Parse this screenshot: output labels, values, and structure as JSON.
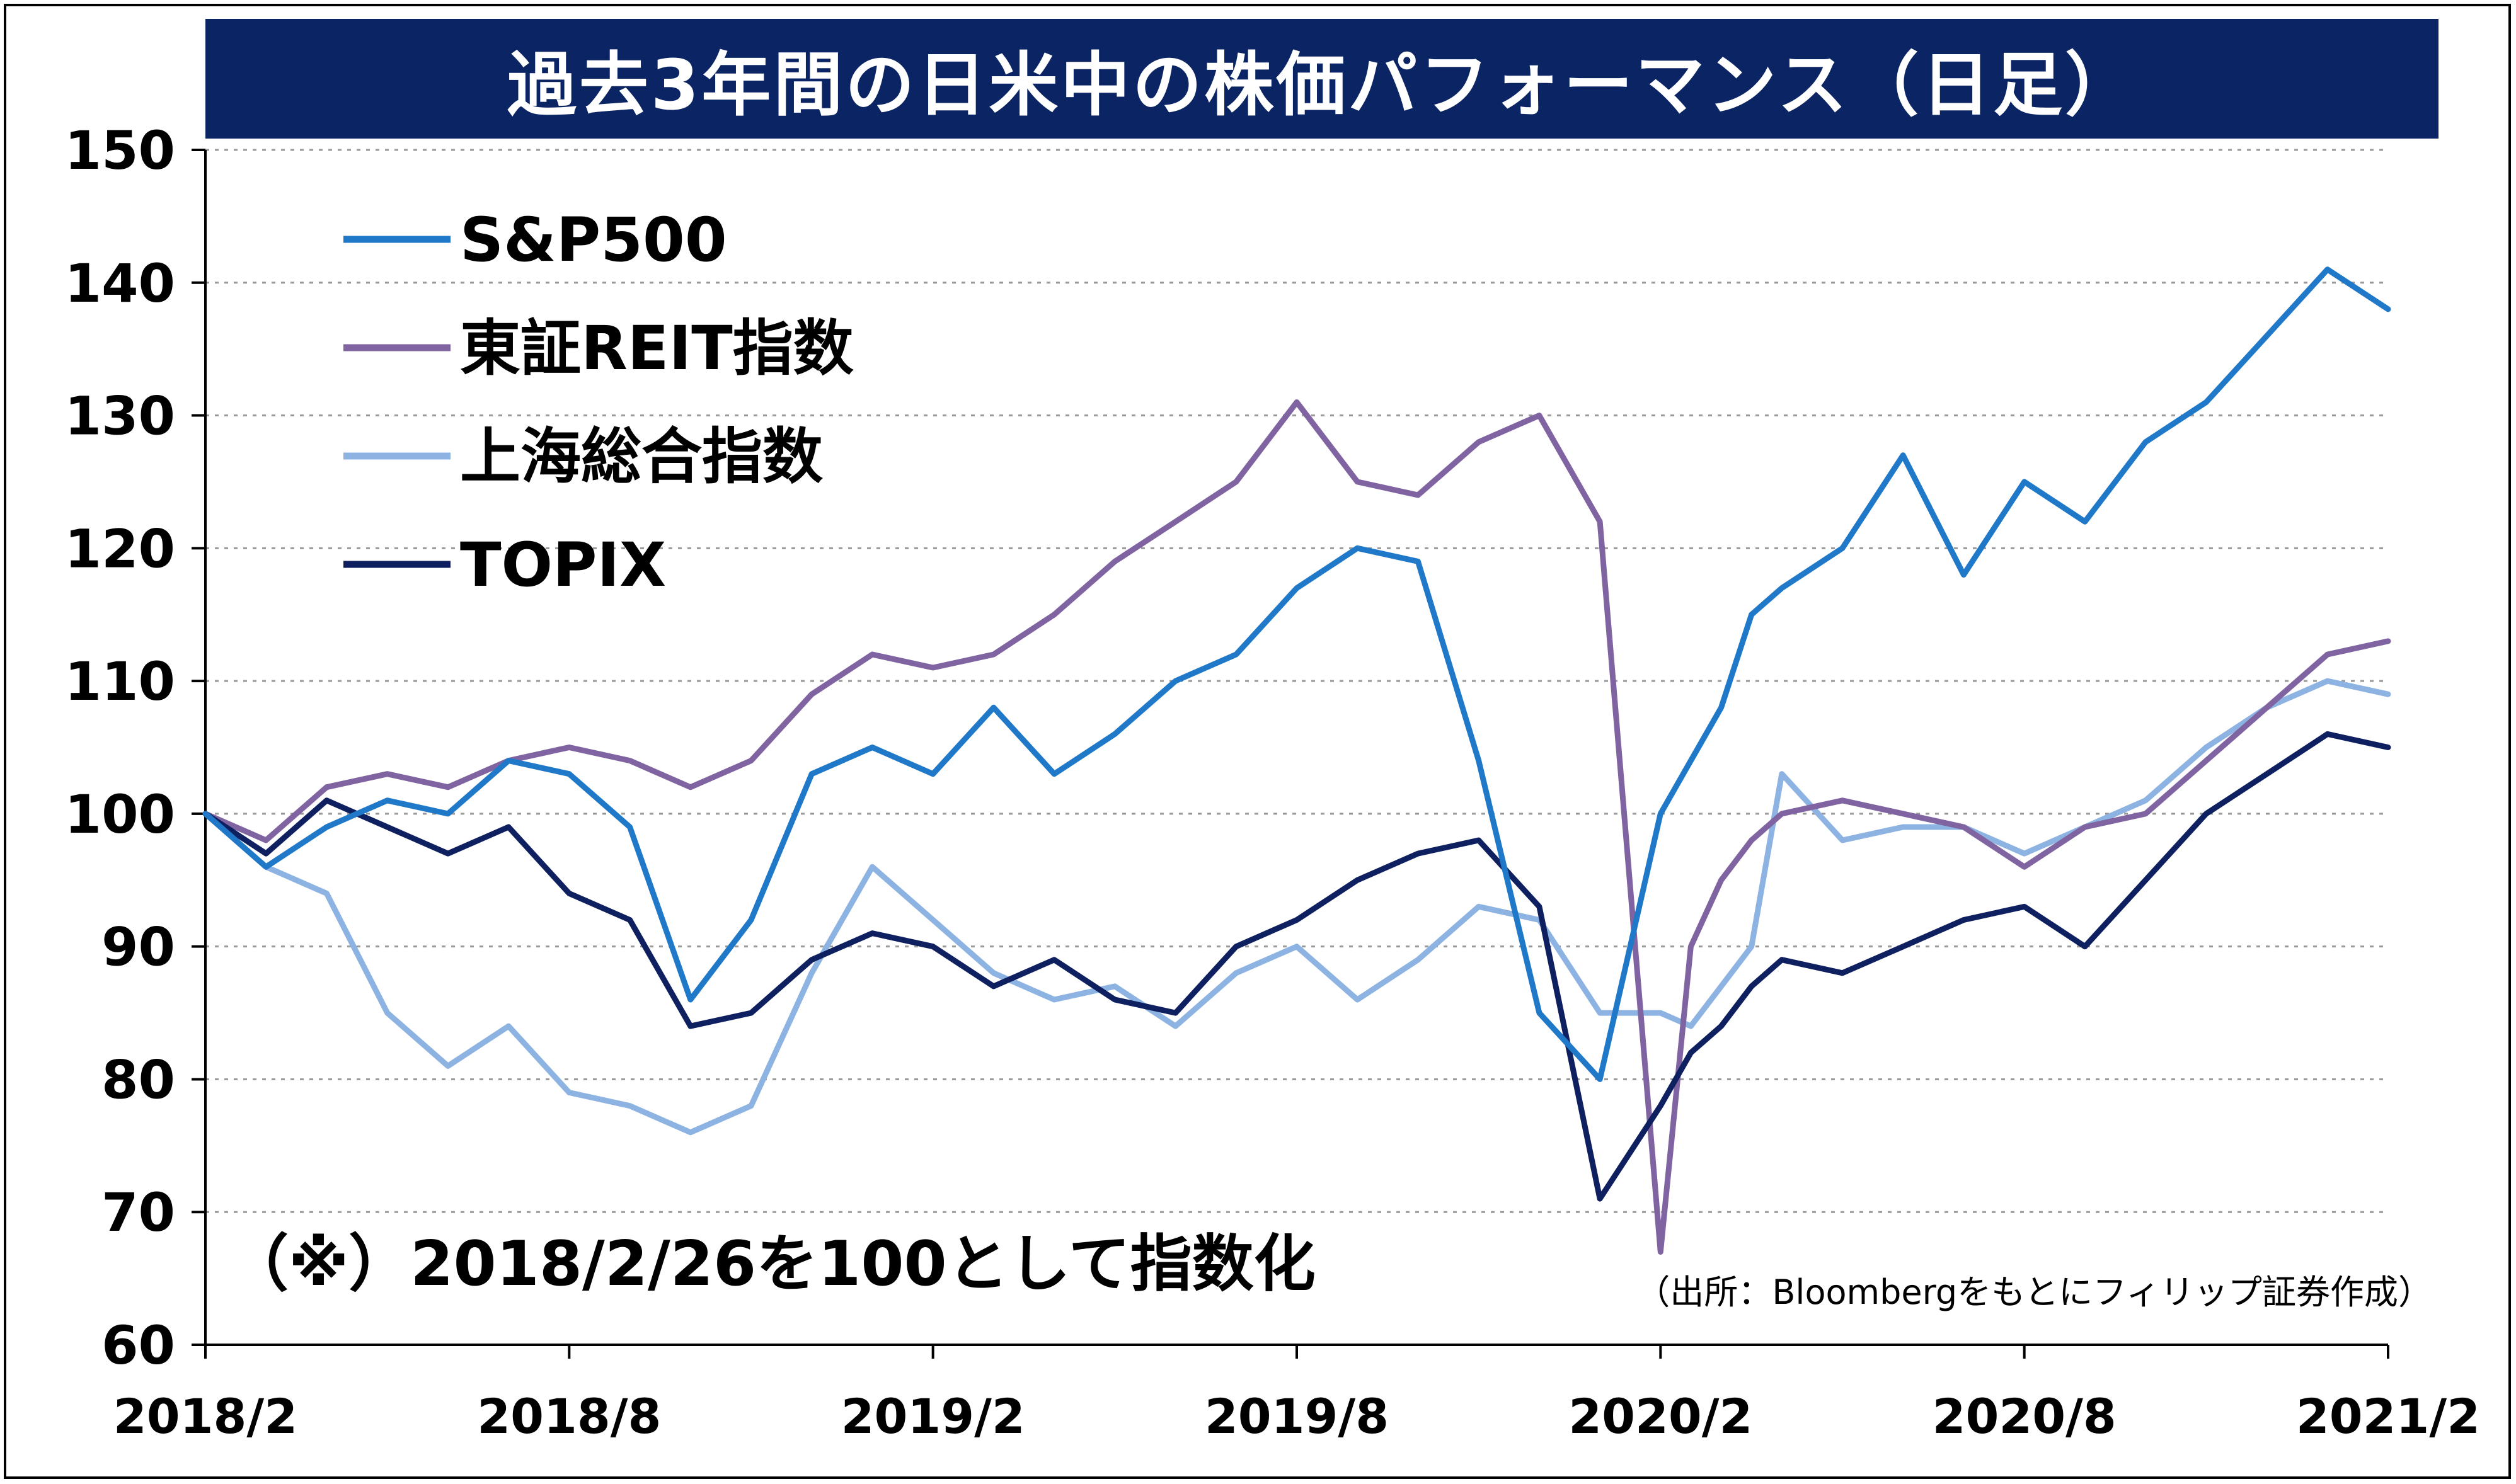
{
  "chart_data": {
    "type": "line",
    "title": "過去3年間の日米中の株価パフォーマンス（日足）",
    "note": "（※）2018/2/26を100として指数化",
    "source": "（出所：Bloombergをもとにフィリップ証券作成）",
    "x_ticks": [
      "2018/2",
      "2018/8",
      "2019/2",
      "2019/8",
      "2020/2",
      "2020/8",
      "2021/2"
    ],
    "ylim": [
      60,
      150
    ],
    "y_ticks": [
      60,
      70,
      80,
      90,
      100,
      110,
      120,
      130,
      140,
      150
    ],
    "grid": "horizontal-dotted",
    "legend_position": "top-left",
    "x_months": [
      0,
      1,
      2,
      3,
      4,
      5,
      6,
      7,
      8,
      9,
      10,
      11,
      12,
      13,
      14,
      15,
      16,
      17,
      18,
      19,
      20,
      21,
      22,
      23,
      24,
      24.5,
      25,
      25.5,
      26,
      27,
      28,
      29,
      30,
      31,
      32,
      33,
      34,
      35,
      36
    ],
    "series": [
      {
        "name": "S&P500",
        "color": "#1f78c8",
        "values": [
          100,
          96,
          99,
          101,
          100,
          104,
          103,
          99,
          86,
          92,
          103,
          105,
          103,
          108,
          103,
          106,
          110,
          112,
          117,
          120,
          119,
          104,
          85,
          80,
          100,
          104,
          108,
          115,
          117,
          120,
          127,
          118,
          125,
          122,
          128,
          131,
          136,
          141,
          138
        ]
      },
      {
        "name": "東証REIT指数",
        "color": "#8064a2",
        "values": [
          100,
          98,
          102,
          103,
          102,
          104,
          105,
          104,
          102,
          104,
          109,
          112,
          111,
          112,
          115,
          119,
          122,
          125,
          131,
          125,
          124,
          128,
          130,
          122,
          67,
          90,
          95,
          98,
          100,
          101,
          100,
          99,
          96,
          99,
          100,
          104,
          108,
          112,
          113
        ]
      },
      {
        "name": "上海総合指数",
        "color": "#8db3e2",
        "values": [
          100,
          96,
          94,
          85,
          81,
          84,
          79,
          78,
          76,
          78,
          88,
          96,
          92,
          88,
          86,
          87,
          84,
          88,
          90,
          86,
          89,
          93,
          92,
          85,
          85,
          84,
          87,
          90,
          103,
          98,
          99,
          99,
          97,
          99,
          101,
          105,
          108,
          110,
          109
        ]
      },
      {
        "name": "TOPIX",
        "color": "#0f2060",
        "values": [
          100,
          97,
          101,
          99,
          97,
          99,
          94,
          92,
          84,
          85,
          89,
          91,
          90,
          87,
          89,
          86,
          85,
          90,
          92,
          95,
          97,
          98,
          93,
          71,
          78,
          82,
          84,
          87,
          89,
          88,
          90,
          92,
          93,
          90,
          95,
          100,
          103,
          106,
          105
        ]
      }
    ]
  }
}
